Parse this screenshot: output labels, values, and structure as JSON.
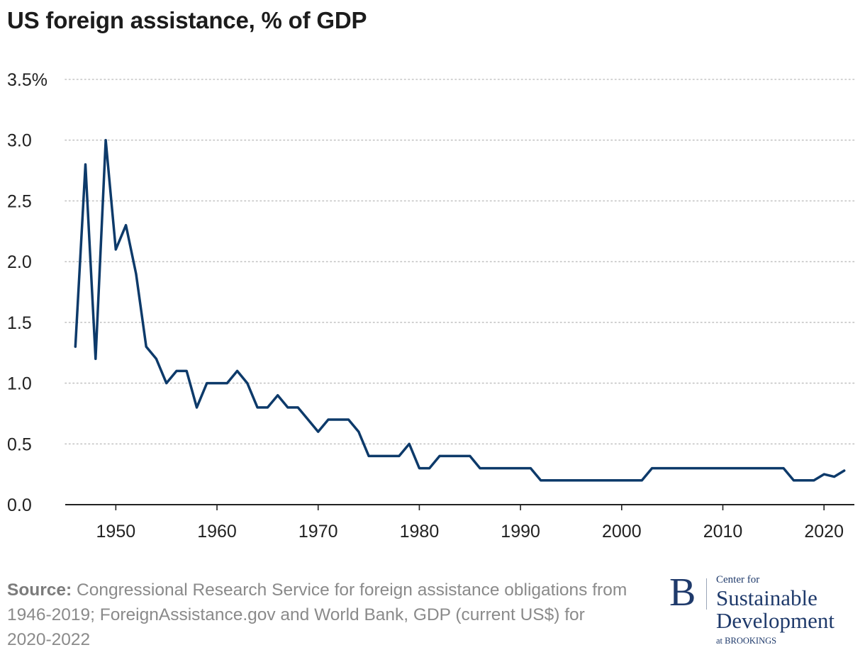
{
  "chart_data": {
    "type": "line",
    "title": "US foreign assistance, % of GDP",
    "xlabel": "",
    "ylabel": "",
    "xlim": [
      1945,
      2023
    ],
    "ylim": [
      0,
      3.5
    ],
    "x_ticks": [
      "1950",
      "1960",
      "1970",
      "1980",
      "1990",
      "2000",
      "2010",
      "2020"
    ],
    "y_ticks": [
      "0.0",
      "0.5",
      "1.0",
      "1.5",
      "2.0",
      "2.5",
      "3.0",
      "3.5%"
    ],
    "grid": true,
    "line_color": "#0d3a6a",
    "series": [
      {
        "x": [
          1946,
          1947,
          1948,
          1949,
          1950,
          1951,
          1952,
          1953,
          1954,
          1955,
          1956,
          1957,
          1958,
          1959,
          1960,
          1961,
          1962,
          1963,
          1964,
          1965,
          1966,
          1967,
          1968,
          1969,
          1970,
          1971,
          1972,
          1973,
          1974,
          1975,
          1976,
          1977,
          1978,
          1979,
          1980,
          1981,
          1982,
          1983,
          1984,
          1985,
          1986,
          1987,
          1988,
          1989,
          1990,
          1991,
          1992,
          1993,
          1994,
          1995,
          1996,
          1997,
          1998,
          1999,
          2000,
          2001,
          2002,
          2003,
          2004,
          2005,
          2006,
          2007,
          2008,
          2009,
          2010,
          2011,
          2012,
          2013,
          2014,
          2015,
          2016,
          2017,
          2018,
          2019,
          2020,
          2021,
          2022
        ],
        "y": [
          1.3,
          2.8,
          1.2,
          3.0,
          2.1,
          2.3,
          1.9,
          1.3,
          1.2,
          1.0,
          1.1,
          1.1,
          0.8,
          1.0,
          1.0,
          1.0,
          1.1,
          1.0,
          0.8,
          0.8,
          0.9,
          0.8,
          0.8,
          0.7,
          0.6,
          0.7,
          0.7,
          0.7,
          0.6,
          0.4,
          0.4,
          0.4,
          0.4,
          0.5,
          0.3,
          0.3,
          0.4,
          0.4,
          0.4,
          0.4,
          0.3,
          0.3,
          0.3,
          0.3,
          0.3,
          0.3,
          0.2,
          0.2,
          0.2,
          0.2,
          0.2,
          0.2,
          0.2,
          0.2,
          0.2,
          0.2,
          0.2,
          0.3,
          0.3,
          0.3,
          0.3,
          0.3,
          0.3,
          0.3,
          0.3,
          0.3,
          0.3,
          0.3,
          0.3,
          0.3,
          0.3,
          0.2,
          0.2,
          0.2,
          0.25,
          0.23,
          0.28
        ]
      }
    ]
  },
  "source": {
    "label": "Source:",
    "text": " Congressional Research Service for foreign assistance obligations from 1946-2019; ForeignAssistance.gov and World Bank, GDP (current US$) for 2020-2022"
  },
  "logo": {
    "mark": "B",
    "line1": "Center for",
    "line2": "Sustainable",
    "line3": "Development",
    "line4": "at BROOKINGS"
  }
}
